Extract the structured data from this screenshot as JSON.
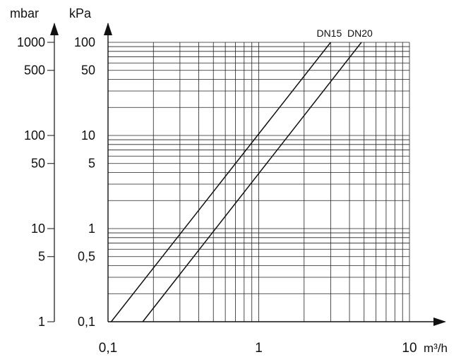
{
  "chart_data": {
    "type": "line",
    "x_scale": "log",
    "y_scale": "log",
    "grid": true,
    "xlim": [
      0.1,
      10
    ],
    "ylim_kPa": [
      0.1,
      100
    ],
    "ylim_mbar": [
      1,
      1000
    ],
    "xunit": "m³/h",
    "y_left_unit": "mbar",
    "y_right_unit": "kPa",
    "x_ticks": [
      {
        "value": 0.1,
        "label": "0,1"
      },
      {
        "value": 1,
        "label": "1"
      },
      {
        "value": 10,
        "label": "10"
      }
    ],
    "y_ticks_mbar": [
      {
        "value": 1000,
        "label": "1000"
      },
      {
        "value": 500,
        "label": "500"
      },
      {
        "value": 100,
        "label": "100"
      },
      {
        "value": 50,
        "label": "50"
      },
      {
        "value": 10,
        "label": "10"
      },
      {
        "value": 5,
        "label": "5"
      },
      {
        "value": 1,
        "label": "1"
      }
    ],
    "y_ticks_kPa": [
      {
        "value": 100,
        "label": "100"
      },
      {
        "value": 50,
        "label": "50"
      },
      {
        "value": 10,
        "label": "10"
      },
      {
        "value": 5,
        "label": "5"
      },
      {
        "value": 1,
        "label": "1"
      },
      {
        "value": 0.5,
        "label": "0,5"
      },
      {
        "value": 0.1,
        "label": "0,1"
      }
    ],
    "series": [
      {
        "name": "DN15",
        "x": [
          0.105,
          3.0
        ],
        "y_kPa": [
          0.1,
          100
        ]
      },
      {
        "name": "DN20",
        "x": [
          0.17,
          4.8
        ],
        "y_kPa": [
          0.1,
          100
        ]
      }
    ]
  }
}
